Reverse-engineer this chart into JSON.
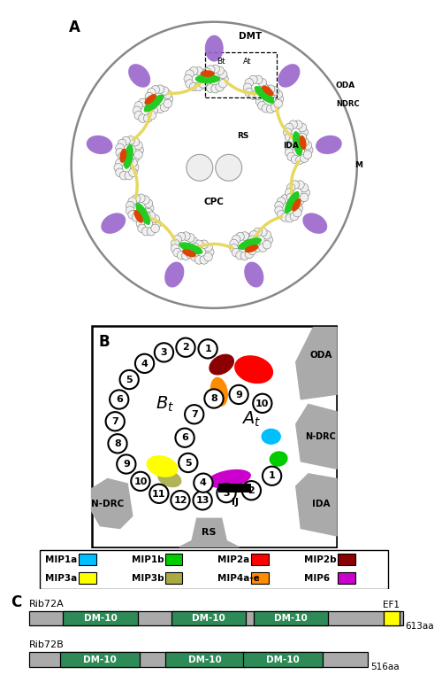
{
  "fig_width": 4.74,
  "fig_height": 7.76,
  "bg_color": "#ffffff",
  "legend_items": [
    {
      "label": "MIP1a",
      "color": "#00BFFF"
    },
    {
      "label": "MIP1b",
      "color": "#00CC00"
    },
    {
      "label": "MIP2a",
      "color": "#FF0000"
    },
    {
      "label": "MIP2b",
      "color": "#8B0000"
    },
    {
      "label": "MIP3a",
      "color": "#FFFF00"
    },
    {
      "label": "MIP3b",
      "color": "#AAAA44"
    },
    {
      "label": "MIP4a-e",
      "color": "#FF8C00"
    },
    {
      "label": "MIP6",
      "color": "#CC00CC"
    }
  ],
  "dm10_color": "#2E8B57",
  "ef1_color": "#FFFF00",
  "gray_color": "#AAAAAA",
  "rib72A_label": "Rib72A",
  "rib72B_label": "Rib72B",
  "dm10_label": "DM-10",
  "ef1_label": "EF1",
  "rib72A_aa": "613aa",
  "rib72B_aa": "516aa"
}
